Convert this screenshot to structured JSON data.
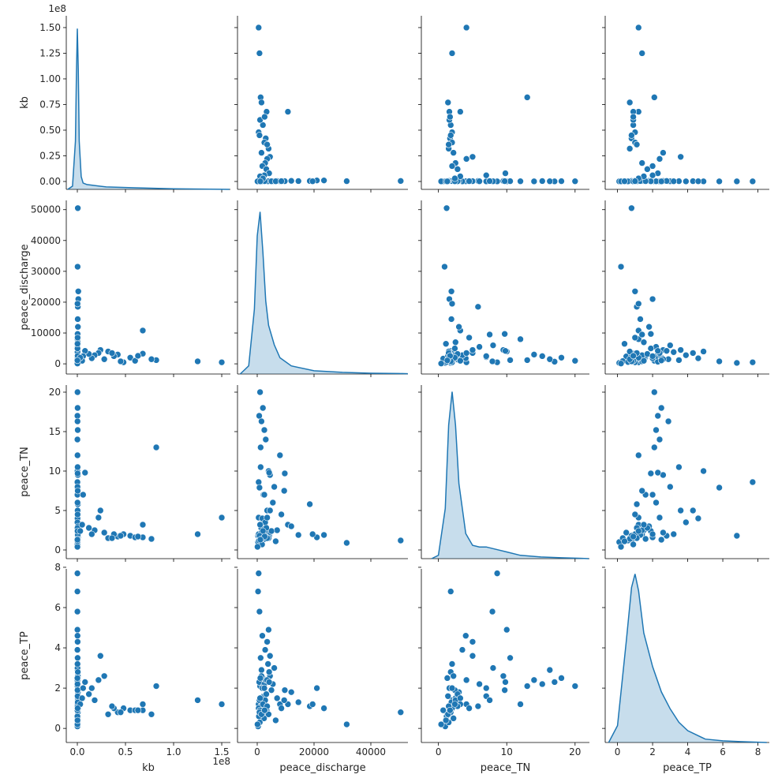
{
  "chart_data": {
    "type": "pairplot",
    "color": "#1f77b4",
    "variables": [
      {
        "name": "kb",
        "offset_label": "1e8",
        "xlim": [
          -11480000,
          159000000
        ],
        "ylim": [
          -7700000,
          161500000
        ],
        "xticks": [
          {
            "value": 0,
            "label": "0.0"
          },
          {
            "value": 50000000,
            "label": "0.5"
          },
          {
            "value": 100000000,
            "label": "1.0"
          },
          {
            "value": 150000000,
            "label": "1.5"
          }
        ],
        "yticks": [
          {
            "value": 0,
            "label": "0.00"
          },
          {
            "value": 25000000,
            "label": "0.25"
          },
          {
            "value": 50000000,
            "label": "0.50"
          },
          {
            "value": 75000000,
            "label": "0.75"
          },
          {
            "value": 100000000,
            "label": "1.00"
          },
          {
            "value": 125000000,
            "label": "1.25"
          },
          {
            "value": 150000000,
            "label": "1.50"
          }
        ]
      },
      {
        "name": "peace_discharge",
        "xlim": [
          -6944,
          53056
        ],
        "ylim": [
          -3300,
          53000
        ],
        "xticks": [
          0,
          20000,
          40000
        ],
        "yticks": [
          0,
          10000,
          20000,
          30000,
          40000,
          50000
        ]
      },
      {
        "name": "peace_TN",
        "xlim": [
          -2.5,
          22.1
        ],
        "ylim": [
          -1.1,
          20.9
        ],
        "xticks": [
          0,
          10,
          20
        ],
        "yticks": [
          0,
          5,
          10,
          15,
          20
        ]
      },
      {
        "name": "peace_TP",
        "xlim": [
          -0.7,
          8.65
        ],
        "ylim": [
          -0.7,
          7.92
        ],
        "xticks": [
          0,
          2,
          4,
          6,
          8
        ],
        "yticks": [
          0,
          2,
          4,
          6,
          8
        ]
      }
    ],
    "points": [
      [
        150000000,
        500,
        4.1,
        1.2
      ],
      [
        125000000,
        800,
        2.0,
        1.4
      ],
      [
        82000000,
        1200,
        13.0,
        2.1
      ],
      [
        68000000,
        10800,
        3.2,
        1.2
      ],
      [
        68000000,
        3300,
        1.6,
        0.9
      ],
      [
        500000,
        50500,
        1.2,
        0.8
      ],
      [
        300000,
        31500,
        0.9,
        0.2
      ],
      [
        1000000,
        23500,
        1.9,
        1.0
      ],
      [
        1000000,
        21000,
        1.6,
        2.0
      ],
      [
        500000,
        18500,
        5.8,
        1.1
      ],
      [
        200000,
        19500,
        2.0,
        1.2
      ],
      [
        200000,
        1000,
        20.0,
        2.1
      ],
      [
        100000,
        500,
        8.6,
        7.7
      ],
      [
        100000,
        300,
        1.8,
        6.8
      ],
      [
        100000,
        800,
        7.9,
        5.8
      ],
      [
        300000,
        2000,
        18.0,
        2.5
      ],
      [
        100000,
        700,
        17.0,
        2.3
      ],
      [
        200000,
        1500,
        16.3,
        2.9
      ],
      [
        400000,
        2500,
        15.2,
        2.2
      ],
      [
        100000,
        3000,
        14.0,
        2.4
      ],
      [
        200000,
        8000,
        12.0,
        1.2
      ],
      [
        100000,
        4000,
        10.0,
        4.9
      ],
      [
        300000,
        1200,
        10.5,
        3.5
      ],
      [
        500000,
        4500,
        9.5,
        2.6
      ],
      [
        200000,
        6000,
        8.0,
        3.0
      ],
      [
        100000,
        2200,
        7.0,
        1.6
      ],
      [
        400000,
        9500,
        7.5,
        1.4
      ],
      [
        200000,
        5500,
        6.0,
        2.2
      ],
      [
        300000,
        3500,
        5.0,
        4.3
      ],
      [
        200000,
        1800,
        4.0,
        4.6
      ],
      [
        100000,
        2800,
        3.5,
        3.9
      ],
      [
        600000,
        12000,
        3.0,
        1.8
      ],
      [
        400000,
        7000,
        2.5,
        1.5
      ],
      [
        200000,
        2400,
        2.2,
        0.5
      ],
      [
        100000,
        300,
        1.0,
        0.1
      ],
      [
        300000,
        900,
        1.5,
        0.3
      ],
      [
        200000,
        1400,
        2.8,
        1.1
      ],
      [
        100000,
        600,
        1.2,
        0.6
      ],
      [
        500000,
        4200,
        1.8,
        2.8
      ],
      [
        200000,
        3800,
        2.0,
        3.2
      ],
      [
        400000,
        14500,
        1.9,
        1.3
      ],
      [
        300000,
        9700,
        9.7,
        1.9
      ],
      [
        200000,
        5000,
        2.4,
        1.9
      ],
      [
        100000,
        1700,
        0.7,
        0.9
      ],
      [
        300000,
        2600,
        1.4,
        1.6
      ],
      [
        55000000,
        2000,
        1.8,
        0.9
      ],
      [
        48000000,
        500,
        2.0,
        1.0
      ],
      [
        42000000,
        3000,
        1.7,
        0.8
      ],
      [
        38000000,
        2500,
        2.0,
        1.0
      ],
      [
        32000000,
        4000,
        1.5,
        0.7
      ],
      [
        28000000,
        1500,
        2.2,
        2.6
      ],
      [
        24000000,
        4500,
        5.0,
        3.6
      ],
      [
        22000000,
        3500,
        4.1,
        2.4
      ],
      [
        18000000,
        2800,
        2.5,
        1.4
      ],
      [
        15000000,
        1800,
        2.0,
        2.0
      ],
      [
        12000000,
        3200,
        2.8,
        1.7
      ],
      [
        8000000,
        4200,
        9.8,
        2.3
      ],
      [
        6000000,
        2500,
        7.0,
        2.0
      ],
      [
        5000000,
        1000,
        3.2,
        1.5
      ],
      [
        3000000,
        2000,
        2.4,
        1.2
      ],
      [
        60000000,
        1000,
        1.6,
        0.9
      ],
      [
        36000000,
        3500,
        1.5,
        1.1
      ],
      [
        45000000,
        800,
        1.8,
        0.8
      ],
      [
        77000000,
        1500,
        1.4,
        0.7
      ],
      [
        63000000,
        2600,
        1.7,
        0.9
      ],
      [
        100000,
        100,
        0.4,
        0.2
      ],
      [
        200000,
        6500,
        1.1,
        0.4
      ],
      [
        300000,
        8500,
        4.5,
        1.0
      ],
      [
        100000,
        1100,
        1.3,
        2.5
      ]
    ],
    "densities": [
      {
        "ylim": [
          0,
          1.08
        ],
        "x": [
          -10000000,
          -5000000,
          -2000000,
          -1000000,
          0,
          1000000,
          2000000,
          4000000,
          6000000,
          10000000,
          30000000,
          60000000,
          100000000,
          158000000
        ],
        "y": [
          0,
          0.02,
          0.3,
          0.7,
          1.0,
          0.75,
          0.3,
          0.08,
          0.04,
          0.03,
          0.015,
          0.01,
          0.004,
          0
        ]
      },
      {
        "ylim": [
          0,
          1.07
        ],
        "x": [
          -6000,
          -3000,
          -1000,
          0,
          1000,
          2000,
          3000,
          4000,
          6000,
          8000,
          12000,
          20000,
          30000,
          40000,
          50000,
          53000
        ],
        "y": [
          0,
          0.05,
          0.4,
          0.85,
          1.0,
          0.75,
          0.45,
          0.3,
          0.18,
          0.1,
          0.05,
          0.02,
          0.01,
          0.005,
          0.003,
          0.002
        ]
      },
      {
        "ylim": [
          0,
          1.04
        ],
        "x": [
          -1,
          0,
          1,
          1.5,
          2,
          2.5,
          3,
          4,
          5,
          6,
          7,
          8,
          10,
          12,
          15,
          18,
          21,
          22
        ],
        "y": [
          0,
          0.02,
          0.3,
          0.8,
          1.0,
          0.8,
          0.45,
          0.15,
          0.08,
          0.07,
          0.07,
          0.06,
          0.04,
          0.02,
          0.01,
          0.005,
          0.002,
          0
        ]
      },
      {
        "ylim": [
          0,
          1.03
        ],
        "x": [
          -0.5,
          0,
          0.5,
          0.8,
          1,
          1.2,
          1.5,
          2,
          2.5,
          3,
          3.5,
          4,
          5,
          6,
          7,
          8,
          8.5
        ],
        "y": [
          0,
          0.1,
          0.6,
          0.92,
          1.0,
          0.9,
          0.65,
          0.45,
          0.3,
          0.2,
          0.12,
          0.07,
          0.02,
          0.01,
          0.005,
          0.002,
          0
        ]
      }
    ]
  }
}
